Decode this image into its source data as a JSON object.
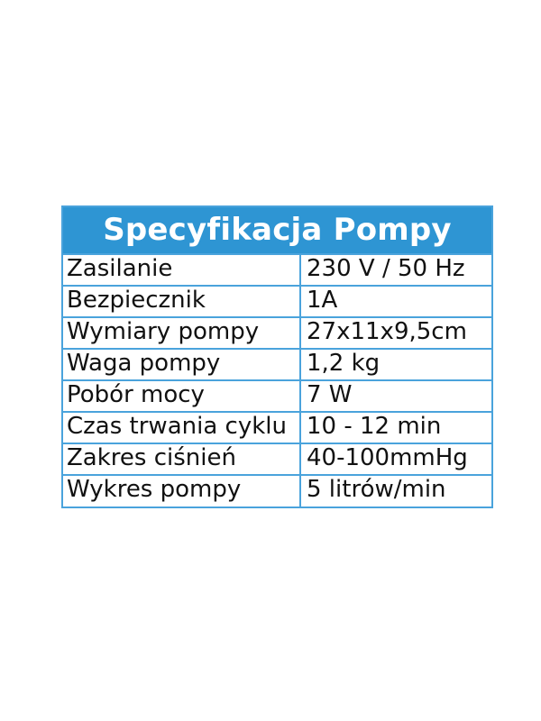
{
  "title": "Specyfikacja Pompy",
  "colors": {
    "header_bg": "#2e95d3",
    "border": "#4aa3dc",
    "header_text": "#ffffff"
  },
  "rows": [
    {
      "label": "Zasilanie",
      "value": "230 V / 50 Hz"
    },
    {
      "label": "Bezpiecznik",
      "value": "1A"
    },
    {
      "label": "Wymiary pompy",
      "value": "27x11x9,5cm"
    },
    {
      "label": "Waga pompy",
      "value": "1,2 kg"
    },
    {
      "label": "Pobór mocy",
      "value": "7 W"
    },
    {
      "label": "Czas trwania cyklu",
      "value": "10 - 12 min"
    },
    {
      "label": "Zakres ciśnień",
      "value": "40-100mmHg"
    },
    {
      "label": "Wykres pompy",
      "value": "5 litrów/min"
    }
  ]
}
